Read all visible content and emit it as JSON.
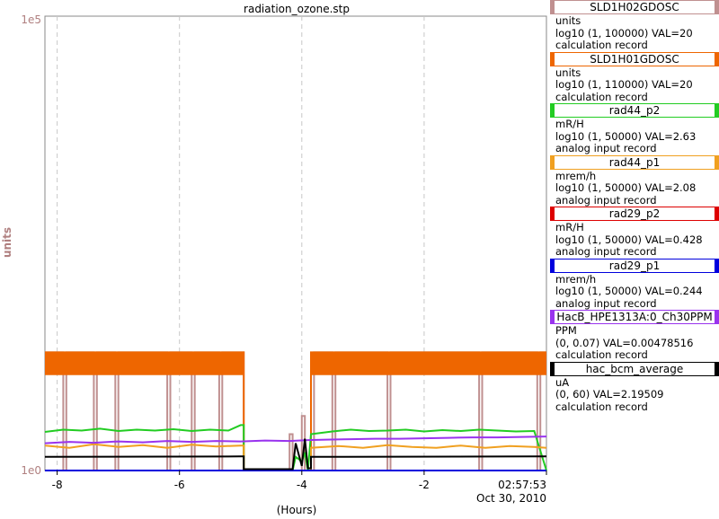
{
  "chart_data": {
    "type": "line",
    "title": "radiation_ozone.stp",
    "ylabel": "units",
    "ytop_label": "1e5",
    "ybottom_label": "1e0",
    "xlabel": "(Hours)",
    "x_ticks": [
      "-8",
      "-6",
      "-4",
      "-2"
    ],
    "end_time": "02:57:53",
    "end_date": "Oct 30, 2010",
    "x_range": [
      -8.2,
      0
    ],
    "y_range": [
      0,
      1
    ],
    "grid": true,
    "series": [
      {
        "name": "SLD1H02GDOSC",
        "color": "#c09090",
        "x": [
          -8.2,
          -7.9,
          -7.9,
          -7.85,
          -7.85,
          -7.4,
          -7.4,
          -7.35,
          -7.35,
          -7.05,
          -7.05,
          -7.0,
          -7.0,
          -6.2,
          -6.2,
          -6.15,
          -6.15,
          -5.8,
          -5.8,
          -5.75,
          -5.75,
          -5.35,
          -5.35,
          -5.3,
          -5.3,
          -4.95,
          -4.95,
          -4.2,
          -4.2,
          -4.15,
          -4.15,
          -4.0,
          -4.0,
          -3.95,
          -3.95,
          -3.8,
          -3.8,
          -3.5,
          -3.5,
          -3.45,
          -3.45,
          -2.6,
          -2.6,
          -2.55,
          -2.55,
          -1.1,
          -1.1,
          -1.05,
          -1.05,
          -0.15,
          -0.15,
          -0.1,
          -0.1,
          0
        ],
        "y": [
          0.26,
          0.26,
          0.0,
          0.0,
          0.26,
          0.26,
          0.0,
          0.0,
          0.26,
          0.26,
          0.0,
          0.0,
          0.26,
          0.26,
          0.0,
          0.0,
          0.26,
          0.26,
          0.0,
          0.0,
          0.26,
          0.26,
          0.0,
          0.0,
          0.26,
          0.26,
          0.0,
          0.0,
          0.08,
          0.08,
          0.0,
          0.0,
          0.12,
          0.12,
          0.0,
          0.0,
          0.26,
          0.26,
          0.0,
          0.0,
          0.26,
          0.26,
          0.0,
          0.0,
          0.26,
          0.26,
          0.0,
          0.0,
          0.26,
          0.26,
          0.0,
          0.0,
          0.26,
          0.26
        ]
      },
      {
        "name": "SLD1H01GDOSC",
        "color": "#ee6600",
        "x": [
          -8.2,
          -4.95,
          -4.95,
          -3.85,
          -3.85,
          0
        ],
        "y": [
          0.26,
          0.26,
          0.0,
          0.0,
          0.26,
          0.26
        ],
        "band": [
          [
            -8.2,
            -4.95
          ],
          [
            -3.85,
            0
          ]
        ],
        "band_low": 0.21
      },
      {
        "name": "rad44_p2",
        "color": "#22cc22",
        "x": [
          -8.2,
          -7.9,
          -7.6,
          -7.3,
          -7.0,
          -6.7,
          -6.4,
          -6.1,
          -5.8,
          -5.5,
          -5.2,
          -5.0,
          -4.95,
          -4.95,
          -4.15,
          -4.1,
          -4.0,
          -3.95,
          -3.9,
          -3.85,
          -3.5,
          -3.2,
          -2.9,
          -2.6,
          -2.3,
          -2.0,
          -1.7,
          -1.4,
          -1.1,
          -0.8,
          -0.5,
          -0.2,
          0
        ],
        "y": [
          0.085,
          0.09,
          0.088,
          0.092,
          0.087,
          0.09,
          0.088,
          0.091,
          0.087,
          0.09,
          0.088,
          0.1,
          0.1,
          0.0,
          0.0,
          0.03,
          0.02,
          0.04,
          0.0,
          0.08,
          0.086,
          0.09,
          0.087,
          0.088,
          0.09,
          0.086,
          0.089,
          0.087,
          0.09,
          0.088,
          0.086,
          0.087,
          0.0
        ]
      },
      {
        "name": "rad44_p1",
        "color": "#f0a020",
        "x": [
          -8.2,
          -7.8,
          -7.4,
          -7.0,
          -6.6,
          -6.2,
          -5.8,
          -5.4,
          -5.0,
          -4.95,
          -4.95,
          -3.85,
          -3.85,
          -3.4,
          -3.0,
          -2.6,
          -2.2,
          -1.8,
          -1.4,
          -1.0,
          -0.6,
          -0.2,
          0
        ],
        "y": [
          0.055,
          0.05,
          0.058,
          0.052,
          0.056,
          0.05,
          0.057,
          0.053,
          0.055,
          0.055,
          0.0,
          0.0,
          0.05,
          0.054,
          0.05,
          0.056,
          0.052,
          0.05,
          0.055,
          0.05,
          0.054,
          0.052,
          0.05
        ]
      },
      {
        "name": "rad29_p2",
        "color": "#dd0000",
        "x": [
          -8.2,
          0
        ],
        "y": [
          0.0,
          0.0
        ]
      },
      {
        "name": "rad29_p1",
        "color": "#0000dd",
        "x": [
          -8.2,
          0
        ],
        "y": [
          0.0,
          0.0
        ]
      },
      {
        "name": "HacB_HPE1313A:0_Ch30PPM",
        "color": "#9933ee",
        "x": [
          -8.2,
          -7.8,
          -7.4,
          -7.0,
          -6.6,
          -6.2,
          -5.8,
          -5.4,
          -5.0,
          -4.6,
          -4.2,
          -3.9,
          -3.6,
          -3.2,
          -2.8,
          -2.4,
          -2.0,
          -1.6,
          -1.2,
          -0.8,
          -0.4,
          0
        ],
        "y": [
          0.06,
          0.063,
          0.061,
          0.064,
          0.062,
          0.065,
          0.063,
          0.065,
          0.064,
          0.066,
          0.065,
          0.067,
          0.068,
          0.069,
          0.07,
          0.07,
          0.071,
          0.072,
          0.073,
          0.073,
          0.074,
          0.075
        ]
      },
      {
        "name": "hac_bcm_average",
        "color": "#000000",
        "x": [
          -8.2,
          -5.0,
          -4.95,
          -4.95,
          -4.15,
          -4.1,
          -4.0,
          -3.95,
          -3.9,
          -3.85,
          -3.85,
          0
        ],
        "y": [
          0.03,
          0.031,
          0.031,
          0.003,
          0.003,
          0.06,
          0.01,
          0.07,
          0.005,
          0.005,
          0.03,
          0.031
        ]
      }
    ]
  },
  "legend": [
    {
      "name": "SLD1H02GDOSC",
      "color": "#c09090",
      "unit": "units",
      "range": "log10 (1, 100000) VAL=20",
      "type": "calculation record"
    },
    {
      "name": "SLD1H01GDOSC",
      "color": "#ee6600",
      "unit": "units",
      "range": "log10 (1, 110000) VAL=20",
      "type": "calculation record"
    },
    {
      "name": "rad44_p2",
      "color": "#22cc22",
      "unit": "mR/H",
      "range": "log10 (1, 50000) VAL=2.63",
      "type": "analog input record"
    },
    {
      "name": "rad44_p1",
      "color": "#f0a020",
      "unit": "mrem/h",
      "range": "log10 (1, 50000) VAL=2.08",
      "type": "analog input record"
    },
    {
      "name": "rad29_p2",
      "color": "#dd0000",
      "unit": "mR/H",
      "range": "log10 (1, 50000) VAL=0.428",
      "type": "analog input record"
    },
    {
      "name": "rad29_p1",
      "color": "#0000dd",
      "unit": "mrem/h",
      "range": "log10 (1, 50000) VAL=0.244",
      "type": "analog input record"
    },
    {
      "name": "HacB_HPE1313A:0_Ch30PPM",
      "color": "#9933ee",
      "unit": "PPM",
      "range": "(0, 0.07) VAL=0.00478516",
      "type": "calculation record"
    },
    {
      "name": "hac_bcm_average",
      "color": "#000000",
      "unit": "uA",
      "range": "(0, 60) VAL=2.19509",
      "type": "calculation record"
    }
  ]
}
